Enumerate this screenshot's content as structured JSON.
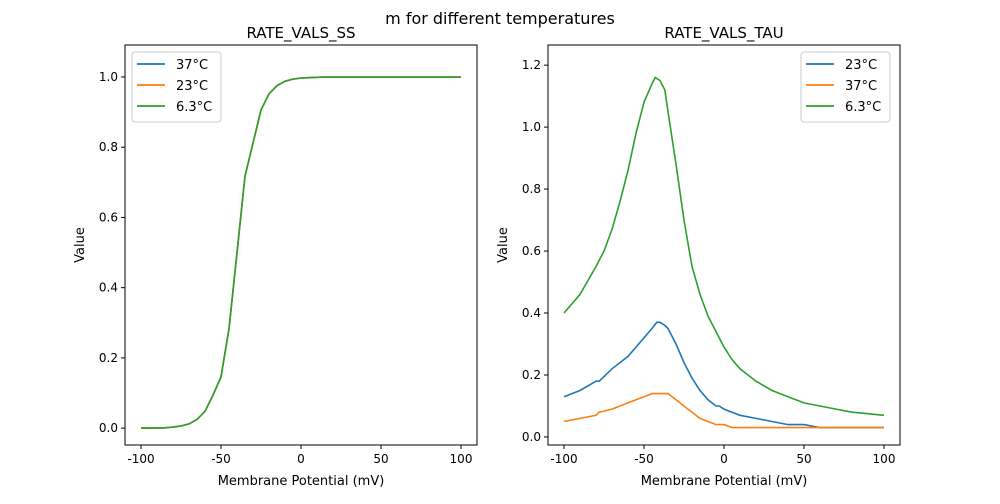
{
  "figure": {
    "suptitle": "m for different temperatures"
  },
  "chart_data": [
    {
      "type": "line",
      "title": "RATE_VALS_SS",
      "xlabel": "Membrane Potential (mV)",
      "ylabel": "Value",
      "xlim": [
        -110,
        110
      ],
      "ylim": [
        -0.048,
        1.091
      ],
      "xticks": [
        -100,
        -50,
        0,
        50,
        100
      ],
      "yticks": [
        0.0,
        0.2,
        0.4,
        0.6,
        0.8,
        1.0
      ],
      "ytick_labels": [
        "0.0",
        "0.2",
        "0.4",
        "0.6",
        "0.8",
        "1.0"
      ],
      "grid": false,
      "legend_position": "upper-left",
      "series": [
        {
          "name": "37°C",
          "color": "#1f77b4",
          "x": [
            -100,
            -95,
            -90,
            -85,
            -80,
            -75,
            -70,
            -65,
            -60,
            -55,
            -50,
            -45,
            -40,
            -35,
            -30,
            -25,
            -20,
            -15,
            -10,
            -5,
            0,
            5,
            10,
            15,
            20,
            25,
            30,
            35,
            40,
            45,
            50,
            55,
            60,
            65,
            70,
            75,
            80,
            85,
            90,
            95,
            100
          ],
          "y": [
            0.0,
            0.0,
            0.0,
            0.001,
            0.003,
            0.006,
            0.012,
            0.025,
            0.048,
            0.094,
            0.146,
            0.283,
            0.5,
            0.717,
            0.812,
            0.906,
            0.952,
            0.975,
            0.988,
            0.994,
            0.997,
            0.998,
            0.999,
            1.0,
            1.0,
            1.0,
            1.0,
            1.0,
            1.0,
            1.0,
            1.0,
            1.0,
            1.0,
            1.0,
            1.0,
            1.0,
            1.0,
            1.0,
            1.0,
            1.0,
            1.0
          ]
        },
        {
          "name": "23°C",
          "color": "#ff7f0e",
          "x": [
            -100,
            -95,
            -90,
            -85,
            -80,
            -75,
            -70,
            -65,
            -60,
            -55,
            -50,
            -45,
            -40,
            -35,
            -30,
            -25,
            -20,
            -15,
            -10,
            -5,
            0,
            5,
            10,
            15,
            20,
            25,
            30,
            35,
            40,
            45,
            50,
            55,
            60,
            65,
            70,
            75,
            80,
            85,
            90,
            95,
            100
          ],
          "y": [
            0.0,
            0.0,
            0.0,
            0.001,
            0.003,
            0.006,
            0.012,
            0.025,
            0.048,
            0.094,
            0.146,
            0.283,
            0.5,
            0.717,
            0.812,
            0.906,
            0.952,
            0.975,
            0.988,
            0.994,
            0.997,
            0.998,
            0.999,
            1.0,
            1.0,
            1.0,
            1.0,
            1.0,
            1.0,
            1.0,
            1.0,
            1.0,
            1.0,
            1.0,
            1.0,
            1.0,
            1.0,
            1.0,
            1.0,
            1.0,
            1.0
          ]
        },
        {
          "name": "6.3°C",
          "color": "#2ca02c",
          "x": [
            -100,
            -95,
            -90,
            -85,
            -80,
            -75,
            -70,
            -65,
            -60,
            -55,
            -50,
            -45,
            -40,
            -35,
            -30,
            -25,
            -20,
            -15,
            -10,
            -5,
            0,
            5,
            10,
            15,
            20,
            25,
            30,
            35,
            40,
            45,
            50,
            55,
            60,
            65,
            70,
            75,
            80,
            85,
            90,
            95,
            100
          ],
          "y": [
            0.0,
            0.0,
            0.0,
            0.001,
            0.003,
            0.006,
            0.012,
            0.025,
            0.048,
            0.094,
            0.146,
            0.283,
            0.5,
            0.717,
            0.812,
            0.906,
            0.952,
            0.975,
            0.988,
            0.994,
            0.997,
            0.998,
            0.999,
            1.0,
            1.0,
            1.0,
            1.0,
            1.0,
            1.0,
            1.0,
            1.0,
            1.0,
            1.0,
            1.0,
            1.0,
            1.0,
            1.0,
            1.0,
            1.0,
            1.0,
            1.0
          ]
        }
      ]
    },
    {
      "type": "line",
      "title": "RATE_VALS_TAU",
      "xlabel": "Membrane Potential (mV)",
      "ylabel": "Value",
      "xlim": [
        -110,
        110
      ],
      "ylim": [
        -0.026,
        1.265
      ],
      "xticks": [
        -100,
        -50,
        0,
        50,
        100
      ],
      "yticks": [
        0.0,
        0.2,
        0.4,
        0.6,
        0.8,
        1.0,
        1.2
      ],
      "ytick_labels": [
        "0.0",
        "0.2",
        "0.4",
        "0.6",
        "0.8",
        "1.0",
        "1.2"
      ],
      "grid": false,
      "legend_position": "upper-right",
      "series": [
        {
          "name": "23°C",
          "color": "#1f77b4",
          "x": [
            -100,
            -90,
            -80,
            -78,
            -70,
            -60,
            -55,
            -50,
            -45,
            -42,
            -40,
            -37,
            -35,
            -30,
            -25,
            -20,
            -15,
            -10,
            -5,
            -3,
            0,
            5,
            10,
            20,
            30,
            40,
            50,
            60,
            100
          ],
          "y": [
            0.13,
            0.15,
            0.18,
            0.18,
            0.22,
            0.26,
            0.29,
            0.32,
            0.35,
            0.37,
            0.37,
            0.36,
            0.35,
            0.3,
            0.24,
            0.19,
            0.15,
            0.12,
            0.1,
            0.1,
            0.09,
            0.08,
            0.07,
            0.06,
            0.05,
            0.04,
            0.04,
            0.03,
            0.03
          ]
        },
        {
          "name": "37°C",
          "color": "#ff7f0e",
          "x": [
            -100,
            -80,
            -78,
            -70,
            -65,
            -60,
            -55,
            -50,
            -45,
            -40,
            -35,
            -30,
            -25,
            -20,
            -15,
            -10,
            -5,
            0,
            5,
            100
          ],
          "y": [
            0.05,
            0.07,
            0.08,
            0.09,
            0.1,
            0.11,
            0.12,
            0.13,
            0.14,
            0.14,
            0.14,
            0.12,
            0.1,
            0.08,
            0.06,
            0.05,
            0.04,
            0.04,
            0.03,
            0.03
          ]
        },
        {
          "name": "6.3°C",
          "color": "#2ca02c",
          "x": [
            -100,
            -90,
            -80,
            -75,
            -70,
            -65,
            -60,
            -55,
            -50,
            -45,
            -43,
            -40,
            -37,
            -35,
            -30,
            -25,
            -20,
            -15,
            -10,
            -5,
            0,
            5,
            10,
            20,
            30,
            40,
            50,
            60,
            70,
            80,
            90,
            100
          ],
          "y": [
            0.4,
            0.46,
            0.55,
            0.6,
            0.67,
            0.76,
            0.86,
            0.98,
            1.08,
            1.14,
            1.16,
            1.15,
            1.12,
            1.05,
            0.88,
            0.7,
            0.55,
            0.46,
            0.39,
            0.34,
            0.29,
            0.25,
            0.22,
            0.18,
            0.15,
            0.13,
            0.11,
            0.1,
            0.09,
            0.08,
            0.075,
            0.07
          ]
        }
      ]
    }
  ]
}
